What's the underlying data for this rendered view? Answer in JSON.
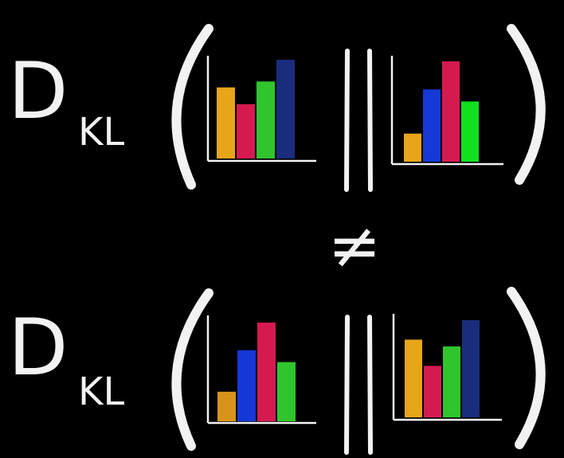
{
  "expressions": [
    {
      "operator_main": "D",
      "operator_sub": "KL",
      "left_histogram": {
        "values": [
          0.72,
          0.55,
          0.78,
          1.0
        ],
        "colors": [
          "#e7a51a",
          "#d51a50",
          "#30c52c",
          "#1a2c7c"
        ]
      },
      "right_histogram": {
        "values": [
          0.28,
          0.72,
          1.0,
          0.6
        ],
        "colors": [
          "#e7a51a",
          "#1638d6",
          "#d51a50",
          "#10e01e"
        ]
      }
    },
    {
      "operator_main": "D",
      "operator_sub": "KL",
      "left_histogram": {
        "values": [
          0.3,
          0.72,
          1.0,
          0.6
        ],
        "colors": [
          "#d8941a",
          "#1638d6",
          "#d51a50",
          "#30c52c"
        ]
      },
      "right_histogram": {
        "values": [
          0.8,
          0.53,
          0.73,
          1.0
        ],
        "colors": [
          "#e7a51a",
          "#d51a50",
          "#30c52c",
          "#1a2c7c"
        ]
      }
    }
  ],
  "relation_symbol": "≠",
  "colors": {
    "background": "#000000",
    "chalk": "#f2f2f2"
  }
}
